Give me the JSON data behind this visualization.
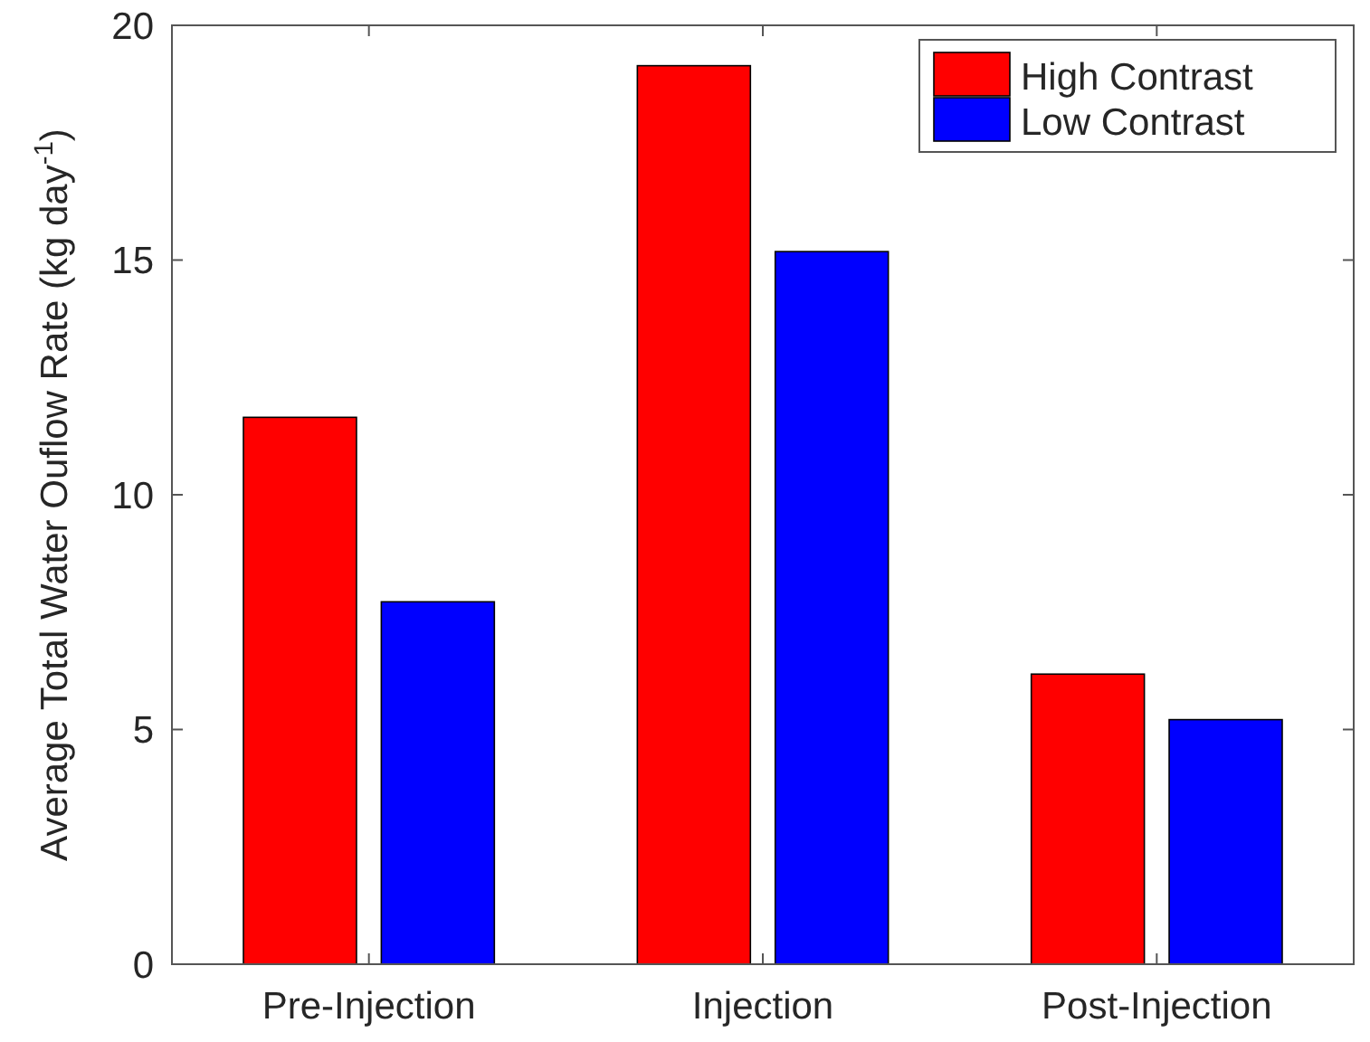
{
  "chart_data": {
    "type": "bar",
    "ylabel": "Average Total Water Ouflow Rate (kg day$^{-1}$)",
    "categories": [
      "Pre-Injection",
      "Injection",
      "Post-Injection"
    ],
    "series": [
      {
        "name": "High Contrast",
        "color": "#ff0000",
        "values": [
          11.65,
          19.14,
          6.18
        ]
      },
      {
        "name": "Low Contrast",
        "color": "#0000ff",
        "values": [
          7.72,
          15.18,
          5.21
        ]
      }
    ],
    "ylim": [
      0,
      20
    ],
    "yticks": [
      0,
      5,
      10,
      15,
      20
    ],
    "grid": false,
    "legend": "top right"
  }
}
